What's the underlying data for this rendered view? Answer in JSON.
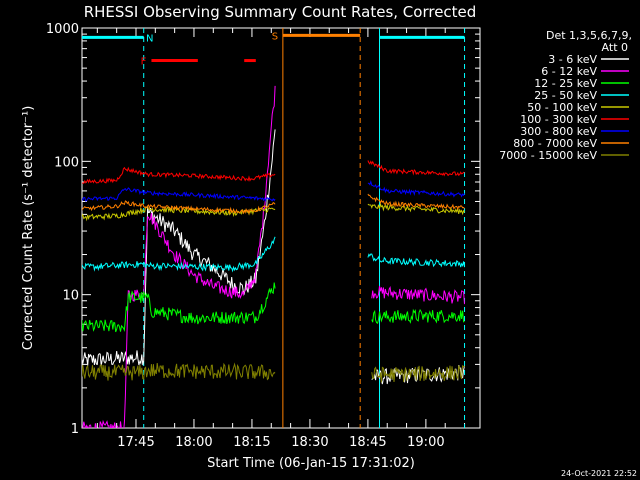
{
  "chart_data": {
    "type": "line",
    "title": "RHESSI Observing Summary Count Rates, Corrected",
    "xlabel": "Start Time (06-Jan-15 17:31:02)",
    "ylabel": "Corrected Count Rate (s⁻¹ detector⁻¹)",
    "yscale": "log",
    "ylim": [
      1,
      1000
    ],
    "xlim": [
      "17:31:02",
      "19:14:00"
    ],
    "x_ticks": [
      "17:45",
      "18:00",
      "18:15",
      "18:30",
      "18:45",
      "19:00"
    ],
    "y_ticks": [
      "1",
      "10",
      "100",
      "1000"
    ],
    "legend_header": [
      "Det 1,3,5,6,7,9,",
      "Att 0"
    ],
    "legend_position": "top-right",
    "footer_date": "24-Oct-2021 22:52",
    "series": [
      {
        "name": "3 - 6 keV",
        "color": "#ffffff",
        "points": [
          [
            "17:31",
            3.2
          ],
          [
            "17:47",
            3.4
          ],
          [
            "17:48",
            42
          ],
          [
            "17:55",
            30
          ],
          [
            "18:00",
            20
          ],
          [
            "18:05",
            16
          ],
          [
            "18:10",
            12
          ],
          [
            "18:13",
            11
          ],
          [
            "18:16",
            13
          ],
          [
            "18:18",
            30
          ],
          [
            "18:20",
            90
          ],
          [
            "18:21",
            170
          ]
        ],
        "points2": [
          [
            "18:46",
            2.4
          ],
          [
            "19:10",
            2.6
          ]
        ]
      },
      {
        "name": "6 - 12 keV",
        "color": "#ff00ff",
        "points": [
          [
            "17:31",
            1.0
          ],
          [
            "17:42",
            1.0
          ],
          [
            "17:43",
            10
          ],
          [
            "17:47",
            10
          ],
          [
            "17:48",
            42
          ],
          [
            "17:55",
            20
          ],
          [
            "18:00",
            14
          ],
          [
            "18:05",
            11.5
          ],
          [
            "18:10",
            10.5
          ],
          [
            "18:13",
            10
          ],
          [
            "18:16",
            14
          ],
          [
            "18:18",
            40
          ],
          [
            "18:20",
            180
          ],
          [
            "18:21",
            340
          ]
        ],
        "points2": [
          [
            "18:46",
            10.5
          ],
          [
            "19:10",
            9.5
          ]
        ]
      },
      {
        "name": "12 - 25 keV",
        "color": "#00ff00",
        "points": [
          [
            "17:31",
            5.8
          ],
          [
            "17:42",
            5.8
          ],
          [
            "17:43",
            9.5
          ],
          [
            "17:48",
            9.5
          ],
          [
            "17:49",
            7.5
          ],
          [
            "18:00",
            6.7
          ],
          [
            "18:16",
            6.8
          ],
          [
            "18:18",
            8.5
          ],
          [
            "18:21",
            12
          ]
        ],
        "points2": [
          [
            "18:46",
            6.8
          ],
          [
            "19:10",
            7.0
          ]
        ]
      },
      {
        "name": "25 - 50 keV",
        "color": "#00ffff",
        "points": [
          [
            "17:31",
            16
          ],
          [
            "17:47",
            17
          ],
          [
            "17:48",
            16.5
          ],
          [
            "18:10",
            16
          ],
          [
            "18:16",
            17
          ],
          [
            "18:19",
            22
          ],
          [
            "18:21",
            26
          ]
        ],
        "points2": [
          [
            "18:45",
            20
          ],
          [
            "18:48",
            18
          ],
          [
            "19:10",
            17
          ]
        ]
      },
      {
        "name": "50 - 100 keV",
        "color": "#c8c800",
        "points": [
          [
            "17:31",
            38
          ],
          [
            "17:40",
            39
          ],
          [
            "17:48",
            44
          ],
          [
            "18:10",
            41
          ],
          [
            "18:21",
            44
          ]
        ],
        "points2": [
          [
            "18:45",
            46
          ],
          [
            "19:10",
            42
          ]
        ]
      },
      {
        "name": "100 - 300 keV",
        "color": "#ff0000",
        "points": [
          [
            "17:31",
            70
          ],
          [
            "17:40",
            72
          ],
          [
            "17:42",
            88
          ],
          [
            "17:48",
            80
          ],
          [
            "18:00",
            78
          ],
          [
            "18:15",
            74
          ],
          [
            "18:21",
            80
          ]
        ],
        "points2": [
          [
            "18:45",
            100
          ],
          [
            "18:50",
            85
          ],
          [
            "19:10",
            80
          ]
        ]
      },
      {
        "name": "300 - 800 keV",
        "color": "#0000ff",
        "points": [
          [
            "17:31",
            52
          ],
          [
            "17:40",
            53
          ],
          [
            "17:42",
            62
          ],
          [
            "17:48",
            58
          ],
          [
            "18:00",
            56
          ],
          [
            "18:15",
            53
          ],
          [
            "18:21",
            52
          ]
        ],
        "points2": [
          [
            "18:45",
            70
          ],
          [
            "18:50",
            60
          ],
          [
            "19:10",
            56
          ]
        ]
      },
      {
        "name": "800 - 7000 keV",
        "color": "#ff8000",
        "points": [
          [
            "17:31",
            44
          ],
          [
            "17:40",
            46
          ],
          [
            "17:42",
            49
          ],
          [
            "17:48",
            46
          ],
          [
            "18:00",
            44
          ],
          [
            "18:15",
            42
          ],
          [
            "18:21",
            48
          ]
        ],
        "points2": [
          [
            "18:45",
            55
          ],
          [
            "18:50",
            48
          ],
          [
            "19:10",
            45
          ]
        ]
      },
      {
        "name": "7000 - 15000 keV",
        "color": "#808000",
        "points": [
          [
            "17:31",
            2.6
          ],
          [
            "17:47",
            2.6
          ],
          [
            "17:48",
            2.7
          ],
          [
            "18:21",
            2.6
          ]
        ],
        "points2": [
          [
            "18:46",
            2.5
          ],
          [
            "19:10",
            2.6
          ]
        ]
      }
    ],
    "annotations": [
      {
        "label": "N",
        "color": "#00ffff",
        "spans": [
          [
            "17:31",
            "17:47"
          ],
          [
            "18:48",
            "19:10"
          ]
        ],
        "level": 850
      },
      {
        "label": "F",
        "color": "#ff0000",
        "spans": [
          [
            "17:49",
            "18:01"
          ],
          [
            "18:13",
            "18:16"
          ]
        ],
        "level": 570
      },
      {
        "label": "S",
        "color": "#ff8000",
        "spans": [
          [
            "18:23",
            "18:43"
          ]
        ],
        "level": 880
      }
    ],
    "vlines": [
      {
        "time": "17:47",
        "color": "#00ffff",
        "style": "dashed"
      },
      {
        "time": "18:48",
        "color": "#00ffff",
        "style": "solid"
      },
      {
        "time": "19:10",
        "color": "#00ffff",
        "style": "dashed"
      },
      {
        "time": "18:23",
        "color": "#ff8000",
        "style": "solid"
      },
      {
        "time": "18:43",
        "color": "#ff8000",
        "style": "dashed"
      }
    ]
  }
}
